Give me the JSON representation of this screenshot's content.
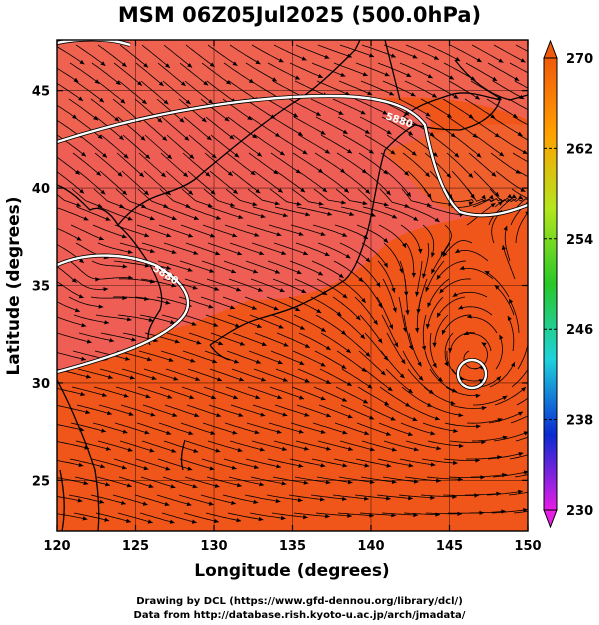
{
  "title": "MSM 06Z05Jul2025 (500.0hPa)",
  "footer": {
    "line1": "Drawing by DCL (https://www.gfd-dennou.org/library/dcl/)",
    "line2": "Data from http://database.rish.kyoto-u.ac.jp/arch/jmadata/"
  },
  "axes": {
    "xlabel": "Longitude (degrees)",
    "ylabel": "Latitude  (degrees)",
    "xlim": [
      120,
      150
    ],
    "ylim": [
      22.4,
      47.6
    ],
    "xticks": [
      120,
      125,
      130,
      135,
      140,
      145,
      150
    ],
    "yticks": [
      25,
      30,
      35,
      40,
      45
    ],
    "grid": true
  },
  "colorbar": {
    "min": 230,
    "max": 270,
    "labels": [
      270,
      262,
      254,
      246,
      238,
      230
    ],
    "colors": [
      "#e61ee6",
      "#0a2ad2",
      "#1ed2dc",
      "#28c828",
      "#b4e61e",
      "#ffa000",
      "#f05a0a"
    ]
  },
  "contours": [
    {
      "value": "5880",
      "label": "5880",
      "color": "#ffffff"
    }
  ],
  "vortex_center": {
    "lon": 146.5,
    "lat": 31.2
  },
  "colors": {
    "field_base": "#f0581c",
    "field_high": "#ee5c58"
  }
}
